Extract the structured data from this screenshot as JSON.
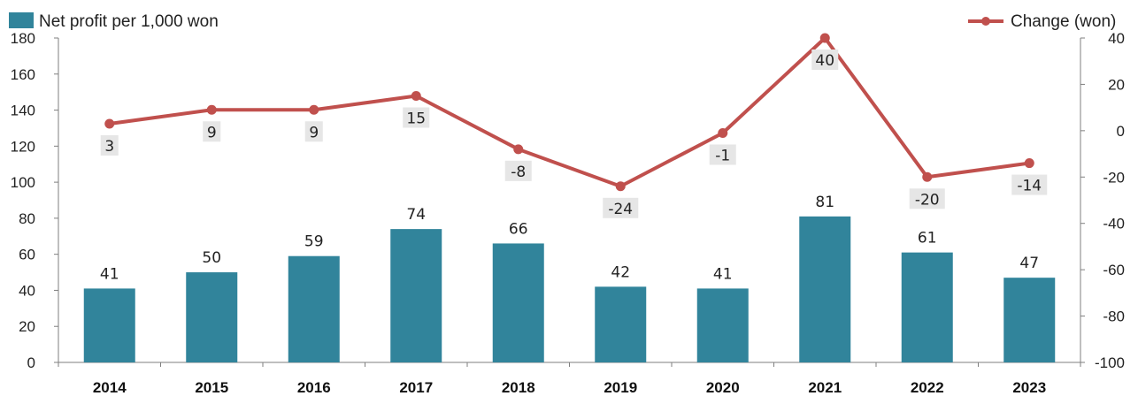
{
  "chart_data": {
    "type": "bar",
    "categories": [
      "2014",
      "2015",
      "2016",
      "2017",
      "2018",
      "2019",
      "2020",
      "2021",
      "2022",
      "2023"
    ],
    "series": [
      {
        "name": "Net profit per 1,000 won",
        "type": "bar",
        "axis": "left",
        "color": "#31849b",
        "values": [
          41,
          50,
          59,
          74,
          66,
          42,
          41,
          81,
          61,
          47
        ]
      },
      {
        "name": "Change (won)",
        "type": "line",
        "axis": "right",
        "color": "#c0504d",
        "values": [
          3,
          9,
          9,
          15,
          -8,
          -24,
          -1,
          40,
          -20,
          -14
        ]
      }
    ],
    "y_left": {
      "min": 0,
      "max": 180,
      "ticks": [
        0,
        20,
        40,
        60,
        80,
        100,
        120,
        140,
        160,
        180
      ]
    },
    "y_right": {
      "min": -100,
      "max": 40,
      "ticks": [
        -100,
        -80,
        -60,
        -40,
        -20,
        0,
        20,
        40
      ]
    },
    "legend": [
      "top-left",
      "top-right"
    ],
    "grid": false
  }
}
